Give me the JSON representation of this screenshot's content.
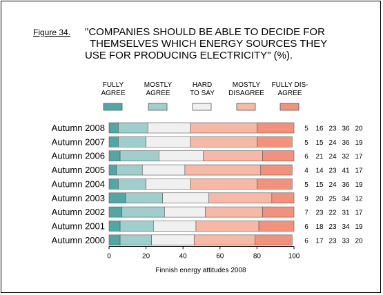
{
  "figure_label": "Figure 34.",
  "chart_data": {
    "type": "bar",
    "stacked": true,
    "orientation": "horizontal",
    "title_lines": [
      "\"COMPANIES SHOULD BE ABLE TO DECIDE FOR",
      "THEMSELVES WHICH ENERGY SOURCES THEY",
      "USE FOR PRODUCING ELECTRICITY\" (%)."
    ],
    "xlabel": "Finnish energy attitudes 2008",
    "xlim": [
      0,
      100
    ],
    "xticks": [
      "0",
      "20",
      "40",
      "60",
      "80",
      "100"
    ],
    "grid": false,
    "legend_position": "top",
    "categories": [
      "Autumn 2008",
      "Autumn 2007",
      "Autumn 2006",
      "Autumn 2005",
      "Autumn 2004",
      "Autumn 2003",
      "Autumn 2002",
      "Autumn 2001",
      "Autumn 2000"
    ],
    "series": [
      {
        "name_lines": [
          "FULLY",
          "AGREE"
        ],
        "color": "#4fa8a6",
        "values": [
          5,
          5,
          6,
          4,
          5,
          9,
          7,
          6,
          6
        ]
      },
      {
        "name_lines": [
          "MOSTLY",
          "AGREE"
        ],
        "color": "#9ecfcd",
        "values": [
          16,
          15,
          21,
          14,
          15,
          20,
          23,
          18,
          17
        ]
      },
      {
        "name_lines": [
          "HARD",
          "TO SAY"
        ],
        "color": "#f0f0f0",
        "values": [
          23,
          24,
          24,
          23,
          24,
          25,
          22,
          23,
          23
        ]
      },
      {
        "name_lines": [
          "MOSTLY",
          "DISAGREE"
        ],
        "color": "#f7b8a6",
        "values": [
          36,
          36,
          32,
          41,
          36,
          34,
          31,
          34,
          33
        ]
      },
      {
        "name_lines": [
          "FULLY DIS-",
          "AGREE"
        ],
        "color": "#f4917c",
        "values": [
          20,
          19,
          17,
          17,
          19,
          12,
          17,
          19,
          20
        ]
      }
    ]
  }
}
